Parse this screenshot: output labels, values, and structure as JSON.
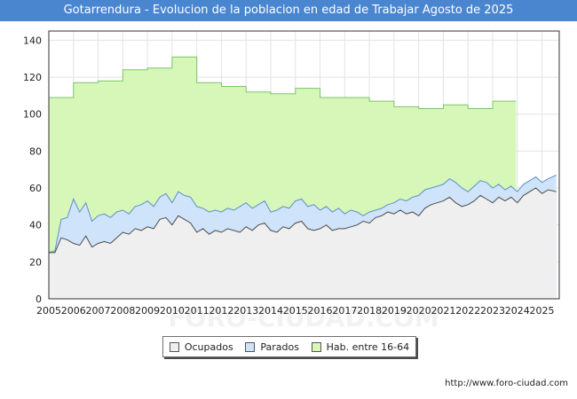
{
  "title": "Gotarrendura - Evolucion de la poblacion en edad de Trabajar Agosto de 2025",
  "source": "http://www.foro-ciudad.com",
  "watermark": "FORO-CIUDAD.COM",
  "legend": [
    {
      "label": "Ocupados",
      "color": "#efefef"
    },
    {
      "label": "Parados",
      "color": "#cfe4fa"
    },
    {
      "label": "Hab. entre 16-64",
      "color": "#d6f7b7"
    }
  ],
  "chart_data": {
    "type": "area",
    "title": "Gotarrendura - Evolucion de la poblacion en edad de Trabajar Agosto de 2025",
    "xlabel": "",
    "ylabel": "",
    "xlim": [
      2005,
      2025.7
    ],
    "ylim": [
      0,
      145
    ],
    "grid": true,
    "legend_position": "bottom",
    "x_ticks": [
      2005,
      2006,
      2007,
      2008,
      2009,
      2010,
      2011,
      2012,
      2013,
      2014,
      2015,
      2016,
      2017,
      2018,
      2019,
      2020,
      2021,
      2022,
      2023,
      2024,
      2025
    ],
    "y_ticks": [
      0,
      20,
      40,
      60,
      80,
      100,
      120,
      140
    ],
    "series": [
      {
        "name": "Hab. entre 16-64",
        "color": "#d6f7b7",
        "line_color": "#7fc36a",
        "x": [
          2005,
          2006,
          2006.001,
          2007,
          2007.001,
          2008,
          2008.001,
          2009,
          2009.001,
          2010,
          2010.001,
          2011,
          2011.001,
          2012,
          2012.001,
          2013,
          2013.001,
          2014,
          2014.001,
          2015,
          2015.001,
          2016,
          2016.001,
          2017,
          2017.001,
          2018,
          2018.001,
          2019,
          2019.001,
          2020,
          2020.001,
          2021,
          2021.001,
          2022,
          2022.001,
          2023,
          2023.001,
          2023.95
        ],
        "values": [
          109,
          109,
          117,
          117,
          118,
          118,
          124,
          124,
          125,
          125,
          131,
          131,
          117,
          117,
          115,
          115,
          112,
          112,
          111,
          111,
          114,
          114,
          109,
          109,
          109,
          109,
          107,
          107,
          104,
          104,
          103,
          103,
          105,
          105,
          103,
          103,
          107,
          107
        ]
      },
      {
        "name": "Parados",
        "color": "#cfe4fa",
        "line_color": "#5d8fca",
        "x": [
          2005.0,
          2005.25,
          2005.5,
          2005.75,
          2006.0,
          2006.25,
          2006.5,
          2006.75,
          2007.0,
          2007.25,
          2007.5,
          2007.75,
          2008.0,
          2008.25,
          2008.5,
          2008.75,
          2009.0,
          2009.25,
          2009.5,
          2009.75,
          2010.0,
          2010.25,
          2010.5,
          2010.75,
          2011.0,
          2011.25,
          2011.5,
          2011.75,
          2012.0,
          2012.25,
          2012.5,
          2012.75,
          2013.0,
          2013.25,
          2013.5,
          2013.75,
          2014.0,
          2014.25,
          2014.5,
          2014.75,
          2015.0,
          2015.25,
          2015.5,
          2015.75,
          2016.0,
          2016.25,
          2016.5,
          2016.75,
          2017.0,
          2017.25,
          2017.5,
          2017.75,
          2018.0,
          2018.25,
          2018.5,
          2018.75,
          2019.0,
          2019.25,
          2019.5,
          2019.75,
          2020.0,
          2020.25,
          2020.5,
          2020.75,
          2021.0,
          2021.25,
          2021.5,
          2021.75,
          2022.0,
          2022.25,
          2022.5,
          2022.75,
          2023.0,
          2023.25,
          2023.5,
          2023.75,
          2024.0,
          2024.25,
          2024.5,
          2024.75,
          2025.0,
          2025.25,
          2025.58
        ],
        "values": [
          25,
          26,
          43,
          44,
          54,
          47,
          52,
          42,
          45,
          46,
          44,
          47,
          48,
          46,
          50,
          51,
          53,
          50,
          55,
          57,
          52,
          58,
          56,
          55,
          50,
          49,
          47,
          48,
          47,
          49,
          48,
          50,
          52,
          49,
          51,
          53,
          47,
          48,
          50,
          49,
          53,
          54,
          50,
          51,
          48,
          50,
          47,
          49,
          46,
          48,
          47,
          45,
          47,
          48,
          49,
          51,
          52,
          54,
          53,
          55,
          56,
          59,
          60,
          61,
          62,
          65,
          63,
          60,
          58,
          61,
          64,
          63,
          60,
          62,
          59,
          61,
          58,
          62,
          64,
          66,
          63,
          65,
          67
        ]
      },
      {
        "name": "Ocupados",
        "color": "#efefef",
        "line_color": "#4a4a4a",
        "x": [
          2005.0,
          2005.25,
          2005.5,
          2005.75,
          2006.0,
          2006.25,
          2006.5,
          2006.75,
          2007.0,
          2007.25,
          2007.5,
          2007.75,
          2008.0,
          2008.25,
          2008.5,
          2008.75,
          2009.0,
          2009.25,
          2009.5,
          2009.75,
          2010.0,
          2010.25,
          2010.5,
          2010.75,
          2011.0,
          2011.25,
          2011.5,
          2011.75,
          2012.0,
          2012.25,
          2012.5,
          2012.75,
          2013.0,
          2013.25,
          2013.5,
          2013.75,
          2014.0,
          2014.25,
          2014.5,
          2014.75,
          2015.0,
          2015.25,
          2015.5,
          2015.75,
          2016.0,
          2016.25,
          2016.5,
          2016.75,
          2017.0,
          2017.25,
          2017.5,
          2017.75,
          2018.0,
          2018.25,
          2018.5,
          2018.75,
          2019.0,
          2019.25,
          2019.5,
          2019.75,
          2020.0,
          2020.25,
          2020.5,
          2020.75,
          2021.0,
          2021.25,
          2021.5,
          2021.75,
          2022.0,
          2022.25,
          2022.5,
          2022.75,
          2023.0,
          2023.25,
          2023.5,
          2023.75,
          2024.0,
          2024.25,
          2024.5,
          2024.75,
          2025.0,
          2025.25,
          2025.58
        ],
        "values": [
          25,
          25,
          33,
          32,
          30,
          29,
          34,
          28,
          30,
          31,
          30,
          33,
          36,
          35,
          38,
          37,
          39,
          38,
          43,
          44,
          40,
          45,
          43,
          41,
          36,
          38,
          35,
          37,
          36,
          38,
          37,
          36,
          39,
          37,
          40,
          41,
          37,
          36,
          39,
          38,
          41,
          42,
          38,
          37,
          38,
          40,
          37,
          38,
          38,
          39,
          40,
          42,
          41,
          44,
          45,
          47,
          46,
          48,
          46,
          47,
          45,
          49,
          51,
          52,
          53,
          55,
          52,
          50,
          51,
          53,
          56,
          54,
          52,
          55,
          53,
          55,
          52,
          56,
          58,
          60,
          57,
          59,
          58
        ]
      }
    ]
  }
}
